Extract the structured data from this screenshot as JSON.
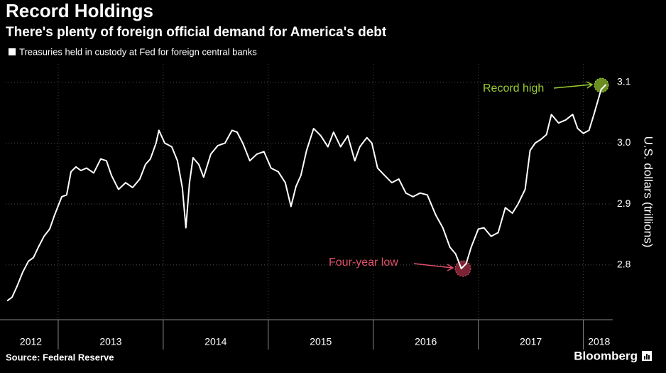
{
  "chart_data": {
    "type": "line",
    "title": "Record Holdings",
    "subtitle": "There's plenty of foreign official demand for America's debt",
    "y_label": "U.S. dollars (trillions)",
    "source": "Source: Federal Reserve",
    "brand": "Bloomberg",
    "annotations": [
      {
        "text": "Record high",
        "color": "#9acd32"
      },
      {
        "text": "Four-year low",
        "color": "#e0506a"
      }
    ],
    "xlim": [
      2012.5,
      2018.28
    ],
    "xticks": [
      {
        "value": 2012.74,
        "label": "2012"
      },
      {
        "value": 2013.5,
        "label": "2013"
      },
      {
        "value": 2014.5,
        "label": "2014"
      },
      {
        "value": 2015.5,
        "label": "2015"
      },
      {
        "value": 2016.5,
        "label": "2016"
      },
      {
        "value": 2017.5,
        "label": "2017"
      },
      {
        "value": 2018.15,
        "label": "2018"
      }
    ],
    "ylim": [
      2.71,
      3.13
    ],
    "yticks": [
      2.8,
      2.9,
      {
        "value": 3,
        "label": "3.0"
      },
      3.1
    ],
    "grid": true,
    "x": [
      2012.514,
      2012.561,
      2012.608,
      2012.662,
      2012.716,
      2012.764,
      2012.811,
      2012.865,
      2012.919,
      2012.966,
      2013.034,
      2013.081,
      2013.122,
      2013.169,
      2013.216,
      2013.27,
      2013.338,
      2013.405,
      2013.459,
      2013.507,
      2013.574,
      2013.642,
      2013.709,
      2013.777,
      2013.831,
      2013.878,
      2013.932,
      2013.959,
      2014.014,
      2014.081,
      2014.135,
      2014.182,
      2014.216,
      2014.25,
      2014.284,
      2014.338,
      2014.385,
      2014.453,
      2014.52,
      2014.588,
      2014.655,
      2014.703,
      2014.757,
      2014.824,
      2014.892,
      2014.959,
      2015.027,
      2015.095,
      2015.162,
      2015.216,
      2015.264,
      2015.311,
      2015.365,
      2015.432,
      2015.5,
      2015.568,
      2015.622,
      2015.689,
      2015.757,
      2015.824,
      2015.872,
      2015.939,
      2015.986,
      2016.041,
      2016.108,
      2016.176,
      2016.243,
      2016.311,
      2016.378,
      2016.446,
      2016.514,
      2016.595,
      2016.662,
      2016.73,
      2016.784,
      2016.838,
      2016.885,
      2016.932,
      2017.0,
      2017.054,
      2017.122,
      2017.189,
      2017.257,
      2017.324,
      2017.378,
      2017.446,
      2017.493,
      2017.541,
      2017.595,
      2017.649,
      2017.696,
      2017.764,
      2017.831,
      2017.899,
      2017.946,
      2018.0,
      2018.054,
      2018.101,
      2018.169,
      2018.216
    ],
    "series": [
      {
        "name": "Treasuries held in custody at Fed for foreign central banks",
        "color": "#ffffff",
        "values": [
          2.741,
          2.747,
          2.765,
          2.788,
          2.806,
          2.812,
          2.829,
          2.847,
          2.859,
          2.882,
          2.912,
          2.915,
          2.953,
          2.961,
          2.955,
          2.959,
          2.951,
          2.974,
          2.971,
          2.947,
          2.924,
          2.935,
          2.927,
          2.941,
          2.965,
          2.974,
          3.0,
          3.021,
          3.0,
          2.994,
          2.971,
          2.927,
          2.861,
          2.935,
          2.976,
          2.965,
          2.944,
          2.982,
          2.996,
          3.0,
          3.021,
          3.018,
          3.0,
          2.971,
          2.982,
          2.986,
          2.959,
          2.953,
          2.935,
          2.896,
          2.929,
          2.947,
          2.988,
          3.024,
          3.012,
          2.994,
          3.018,
          2.994,
          3.012,
          2.971,
          2.994,
          3.009,
          3.0,
          2.959,
          2.947,
          2.935,
          2.941,
          2.918,
          2.912,
          2.918,
          2.915,
          2.882,
          2.861,
          2.829,
          2.818,
          2.794,
          2.802,
          2.829,
          2.859,
          2.861,
          2.847,
          2.853,
          2.894,
          2.885,
          2.9,
          2.924,
          2.988,
          3.0,
          3.006,
          3.014,
          3.047,
          3.033,
          3.038,
          3.047,
          3.024,
          3.016,
          3.021,
          3.047,
          3.088,
          3.096
        ]
      }
    ]
  }
}
